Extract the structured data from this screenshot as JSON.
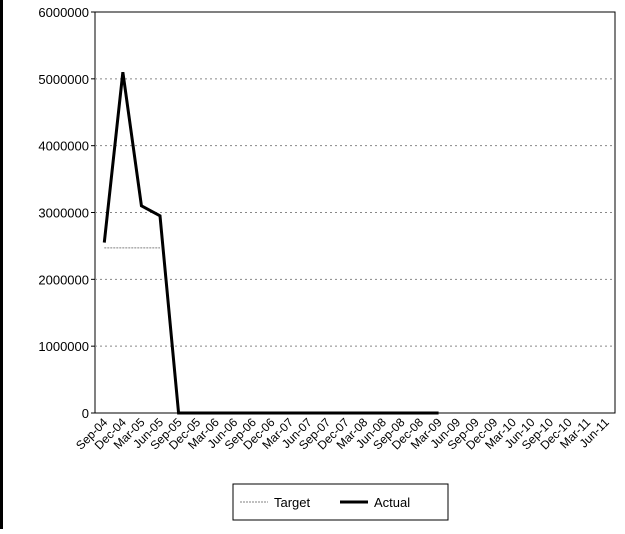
{
  "chart_data": {
    "type": "line",
    "categories": [
      "Sep-04",
      "Dec-04",
      "Mar-05",
      "Jun-05",
      "Sep-05",
      "Dec-05",
      "Mar-06",
      "Jun-06",
      "Sep-06",
      "Dec-06",
      "Mar-07",
      "Jun-07",
      "Sep-07",
      "Dec-07",
      "Mar-08",
      "Jun-08",
      "Sep-08",
      "Dec-08",
      "Mar-09",
      "Jun-09",
      "Sep-09",
      "Dec-09",
      "Mar-10",
      "Jun-10",
      "Sep-10",
      "Dec-10",
      "Mar-11",
      "Jun-11"
    ],
    "series": [
      {
        "name": "Target",
        "color": "#808080",
        "style": "dotted",
        "values": [
          2470000,
          2470000,
          2470000,
          2470000,
          null,
          null,
          null,
          null,
          null,
          null,
          null,
          null,
          null,
          null,
          null,
          null,
          null,
          null,
          null,
          null,
          null,
          null,
          null,
          null,
          null,
          null,
          null,
          null
        ]
      },
      {
        "name": "Actual",
        "color": "#000000",
        "style": "solid",
        "values": [
          2550000,
          5100000,
          3100000,
          2950000,
          0,
          0,
          0,
          0,
          0,
          0,
          0,
          0,
          0,
          0,
          0,
          0,
          0,
          0,
          0,
          null,
          null,
          null,
          null,
          null,
          null,
          null,
          null,
          null
        ]
      }
    ],
    "ylim": [
      0,
      6000000
    ],
    "yticks": [
      0,
      1000000,
      2000000,
      3000000,
      4000000,
      5000000,
      6000000
    ],
    "grid": true
  }
}
